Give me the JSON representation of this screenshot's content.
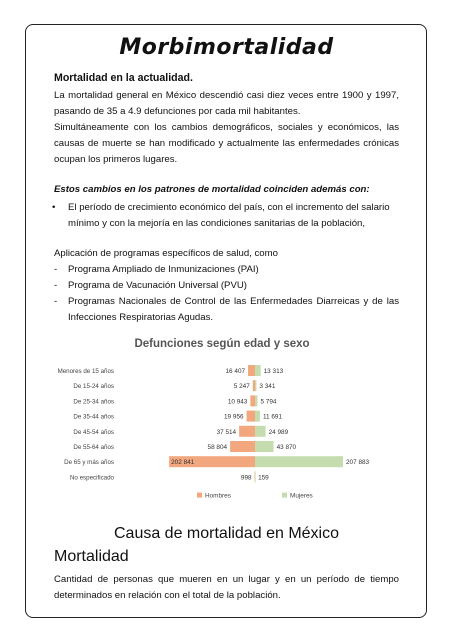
{
  "title": "Morbimortalidad",
  "section1": {
    "heading": "Mortalidad en la actualidad.",
    "paragraph1": "La mortalidad general en México descendió casi diez veces entre 1900 y 1997, pasando de 35 a 4.9 defunciones por cada mil habitantes.",
    "paragraph2": "Simultáneamente con los cambios demográficos, sociales y económicos, las causas de muerte se han modificado y actualmente las enfermedades crónicas ocupan los primeros lugares."
  },
  "section2": {
    "heading": "Estos cambios en los patrones de mortalidad coinciden además con:",
    "bullet_mark": "•",
    "bullet": "El período de crecimiento económico del país, con el incremento del salario mínimo y con la mejoría en las condiciones sanitarias de la población,"
  },
  "section3": {
    "intro": "Aplicación de programas específicos de salud, como",
    "dash": "-",
    "items": [
      "Programa Ampliado de Inmunizaciones (PAI)",
      "Programa de Vacunación Universal (PVU)",
      "Programas Nacionales de Control de las Enfermedades Diarreicas y de las Infecciones Respiratorias Agudas."
    ]
  },
  "chart_data": {
    "type": "bar",
    "title": "Defunciones según edad y sexo",
    "categories": [
      "Menores de 15 años",
      "De 15-24 años",
      "De 25-34 años",
      "De 35-44 años",
      "De 45-54 años",
      "De 55-64 años",
      "De 65 y más años",
      "No especificado"
    ],
    "series": [
      {
        "name": "Hombres",
        "values": [
          16407,
          5247,
          10943,
          19956,
          37514,
          58804,
          202841,
          998
        ],
        "labels": [
          "16 407",
          "5 247",
          "10 943",
          "19 956",
          "37 514",
          "58 804",
          "202 841",
          "998"
        ],
        "color": "#f2a77e"
      },
      {
        "name": "Mujeres",
        "values": [
          13313,
          3341,
          5794,
          11691,
          24989,
          43870,
          207883,
          159
        ],
        "labels": [
          "13 313",
          "3 341",
          "5 794",
          "11 691",
          "24 989",
          "43 870",
          "207 883",
          "159"
        ],
        "color": "#c4dcae"
      }
    ],
    "orientation": "horizontal-pyramid",
    "grid": false,
    "legend": "bottom"
  },
  "heading2": "Causa de mortalidad en México",
  "mortalidad": {
    "heading": "Mortalidad",
    "text": "Cantidad de personas que mueren en un lugar y en un período de tiempo determinados en relación con el total de la población."
  }
}
